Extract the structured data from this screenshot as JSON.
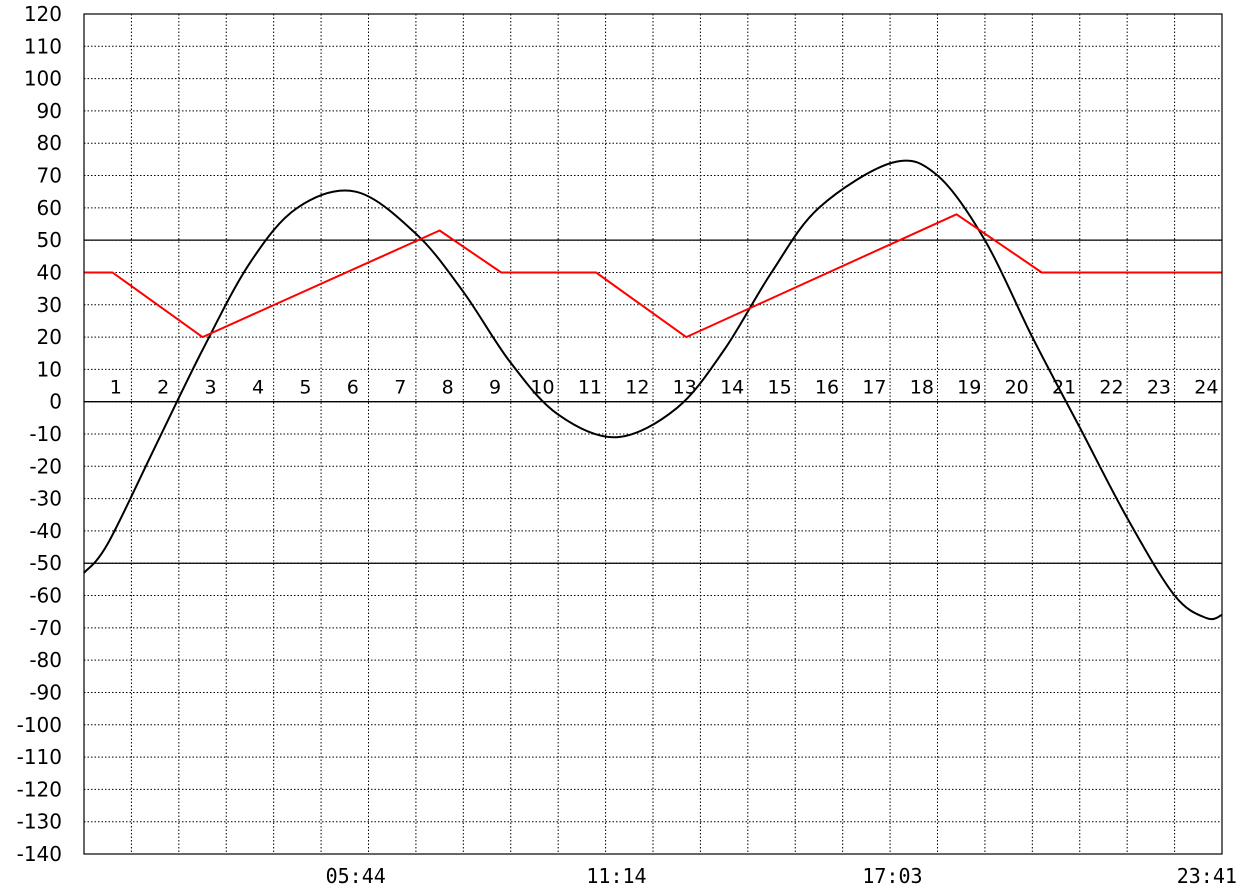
{
  "chart_data": {
    "type": "line",
    "title": "",
    "xlabel": "",
    "ylabel": "",
    "xlim": [
      0,
      24
    ],
    "ylim": [
      -140,
      120
    ],
    "y_ticks": [
      120,
      110,
      100,
      90,
      80,
      70,
      60,
      50,
      40,
      30,
      20,
      10,
      0,
      -10,
      -20,
      -30,
      -40,
      -50,
      -60,
      -70,
      -80,
      -90,
      -100,
      -110,
      -120,
      -130,
      -140
    ],
    "hour_labels": [
      "1",
      "2",
      "3",
      "4",
      "5",
      "6",
      "7",
      "8",
      "9",
      "10",
      "11",
      "12",
      "13",
      "14",
      "15",
      "16",
      "17",
      "18",
      "19",
      "20",
      "21",
      "22",
      "23",
      "24"
    ],
    "time_labels": [
      {
        "x": 5.73,
        "label": "05:44"
      },
      {
        "x": 11.23,
        "label": "11:14"
      },
      {
        "x": 17.05,
        "label": "17:03"
      },
      {
        "x": 23.68,
        "label": "23:41"
      }
    ],
    "reference_lines": [
      50,
      0,
      -50
    ],
    "grid": true,
    "colors": {
      "curve": "#000000",
      "profile": "#ff0000",
      "grid": "#000000",
      "reference": "#000000"
    },
    "series": [
      {
        "color": "#000000",
        "smooth": true,
        "points": [
          [
            0,
            -53
          ],
          [
            0.5,
            -44
          ],
          [
            1.5,
            -14
          ],
          [
            2.5,
            16
          ],
          [
            3.5,
            43
          ],
          [
            4.5,
            60
          ],
          [
            5.73,
            65
          ],
          [
            7,
            52
          ],
          [
            8,
            34
          ],
          [
            9,
            12
          ],
          [
            10,
            -4
          ],
          [
            11.23,
            -11
          ],
          [
            12.5,
            -2
          ],
          [
            13.5,
            16
          ],
          [
            14.5,
            40
          ],
          [
            15.5,
            60
          ],
          [
            17.05,
            74
          ],
          [
            18,
            70
          ],
          [
            19,
            50
          ],
          [
            20,
            20
          ],
          [
            21,
            -8
          ],
          [
            22,
            -36
          ],
          [
            23,
            -60
          ],
          [
            23.68,
            -67
          ],
          [
            24,
            -66
          ]
        ]
      },
      {
        "color": "#ff0000",
        "smooth": false,
        "points": [
          [
            0,
            40
          ],
          [
            0.6,
            40
          ],
          [
            2.5,
            20
          ],
          [
            7.5,
            53
          ],
          [
            8.8,
            40
          ],
          [
            10.8,
            40
          ],
          [
            12.7,
            20
          ],
          [
            18.4,
            58
          ],
          [
            20.2,
            40
          ],
          [
            24,
            40
          ]
        ]
      }
    ]
  }
}
